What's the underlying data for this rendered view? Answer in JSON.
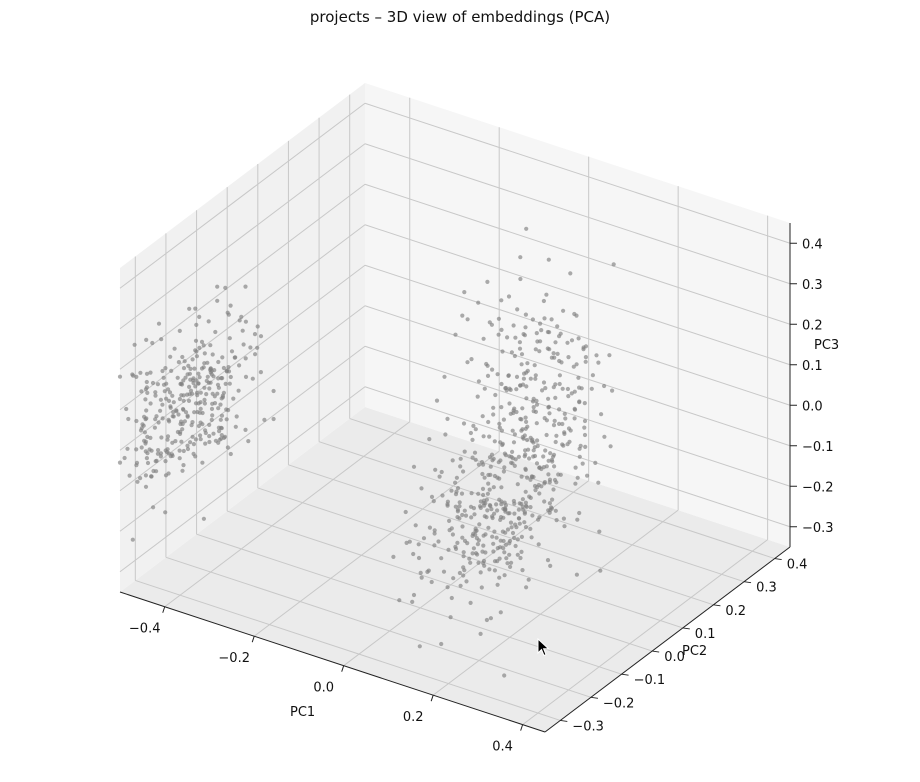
{
  "title": "projects – 3D view of embeddings (PCA)",
  "cursor_icon": "mouse-pointer-icon",
  "chart_data": {
    "type": "scatter",
    "projection": "3d",
    "title": "projects – 3D view of embeddings (PCA)",
    "xlabel": "PC1",
    "ylabel": "PC2",
    "zlabel": "PC3",
    "xlim": [
      -0.5,
      0.45
    ],
    "ylim": [
      -0.35,
      0.45
    ],
    "zlim": [
      -0.35,
      0.45
    ],
    "grid": true,
    "point_color": "#808080",
    "x_ticks": [
      "−0.4",
      "−0.2",
      "0.0",
      "0.2",
      "0.4"
    ],
    "x_tick_values": [
      -0.4,
      -0.2,
      0.0,
      0.2,
      0.4
    ],
    "y_ticks": [
      "−0.3",
      "−0.2",
      "−0.1",
      "0.0",
      "0.1",
      "0.2",
      "0.3",
      "0.4"
    ],
    "y_tick_values": [
      -0.3,
      -0.2,
      -0.1,
      0.0,
      0.1,
      0.2,
      0.3,
      0.4
    ],
    "z_ticks": [
      "−0.3",
      "−0.2",
      "−0.1",
      "0.0",
      "0.1",
      "0.2",
      "0.3",
      "0.4"
    ],
    "z_tick_values": [
      -0.3,
      -0.2,
      -0.1,
      0.0,
      0.1,
      0.2,
      0.3,
      0.4
    ],
    "clusters": [
      {
        "center": [
          -0.45,
          -0.2,
          0.05
        ],
        "spread": [
          0.035,
          0.1,
          0.09
        ],
        "count": 330
      },
      {
        "center": [
          0.08,
          0.15,
          0.0
        ],
        "spread": [
          0.06,
          0.08,
          0.16
        ],
        "count": 320
      },
      {
        "center": [
          0.18,
          -0.15,
          -0.05
        ],
        "spread": [
          0.05,
          0.09,
          0.09
        ],
        "count": 260
      }
    ]
  }
}
